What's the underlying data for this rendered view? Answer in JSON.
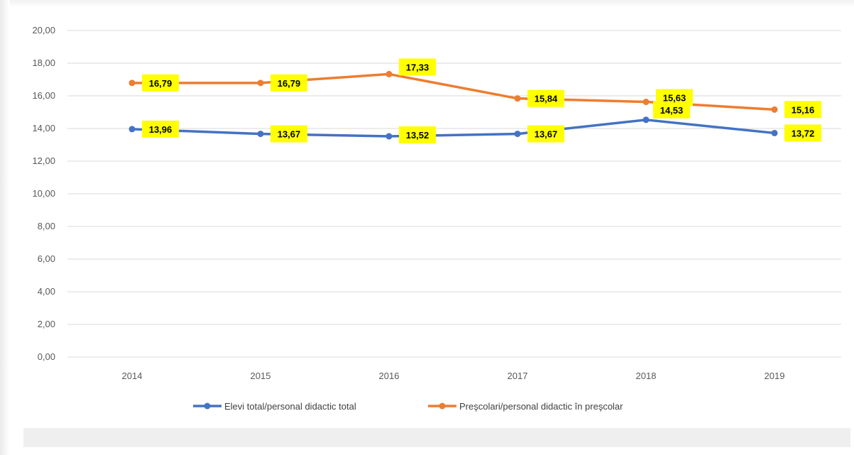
{
  "chart_data": {
    "type": "line",
    "categories": [
      "2014",
      "2015",
      "2016",
      "2017",
      "2018",
      "2019"
    ],
    "ylim": [
      0,
      20
    ],
    "yticks": [
      "0,00",
      "2,00",
      "4,00",
      "6,00",
      "8,00",
      "10,00",
      "12,00",
      "14,00",
      "16,00",
      "18,00",
      "20,00"
    ],
    "grid": true,
    "legend_position": "bottom",
    "series": [
      {
        "name": "Elevi total/personal didactic total",
        "color": "#4472c4",
        "values": [
          13.96,
          13.67,
          13.52,
          13.67,
          14.53,
          13.72
        ],
        "labels": [
          "13,96",
          "13,67",
          "13,52",
          "13,67",
          "14,53",
          "13,72"
        ]
      },
      {
        "name": "Preşcolari/personal didactic în preşcolar",
        "color": "#ed7d31",
        "values": [
          16.79,
          16.79,
          17.33,
          15.84,
          15.63,
          15.16
        ],
        "labels": [
          "16,79",
          "16,79",
          "17,33",
          "15,84",
          "15,63",
          "15,16"
        ]
      }
    ],
    "data_label_background": "#ffff00"
  }
}
